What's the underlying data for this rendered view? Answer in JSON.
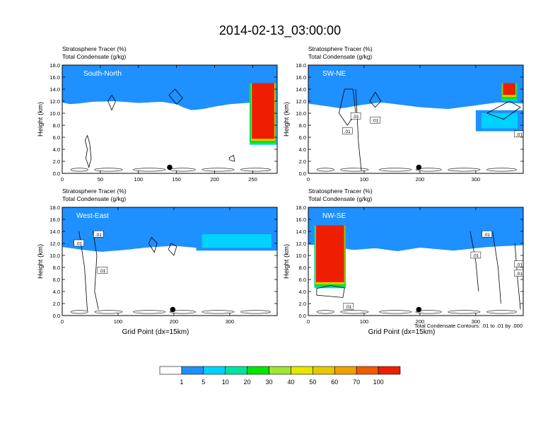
{
  "title": "2014-02-13_03:00:00",
  "colorbar": {
    "colors": [
      "#ffffff",
      "#1e90ff",
      "#00d2ff",
      "#00e3a0",
      "#00e600",
      "#a0e632",
      "#e6e600",
      "#e6c800",
      "#f0a000",
      "#f05a00",
      "#f01e00"
    ],
    "labels": [
      "1",
      "5",
      "10",
      "20",
      "30",
      "40",
      "50",
      "60",
      "70",
      "100"
    ]
  },
  "footnote": "Total Condensate Contours: .01 to .01 by .000",
  "chart_data": [
    {
      "type": "heatmap",
      "panel_label": "South-North",
      "title_lines": [
        "Stratosphere Tracer   (%)",
        "Total Condensate   (g/kg)"
      ],
      "ylabel": "Height (km)",
      "xlabel": "",
      "xlim": [
        0,
        282
      ],
      "ylim": [
        0,
        18
      ],
      "xticks": [
        0,
        50,
        100,
        150,
        200,
        250
      ],
      "yticks": [
        "0.0",
        "2.0",
        "4.0",
        "6.0",
        "8.0",
        "10.0",
        "12.0",
        "14.0",
        "16.0",
        "18.0"
      ],
      "marker": {
        "x": 141,
        "y": 1.0
      },
      "contour_labels": [],
      "profile": [
        [
          0,
          15.2
        ],
        [
          10,
          14.9
        ],
        [
          20,
          15.0
        ],
        [
          40,
          15.3
        ],
        [
          70,
          15.4
        ],
        [
          100,
          15.1
        ],
        [
          130,
          15.3
        ],
        [
          150,
          14.9
        ],
        [
          160,
          14.3
        ],
        [
          170,
          13.9
        ],
        [
          185,
          14.1
        ],
        [
          200,
          14.5
        ],
        [
          220,
          14.9
        ],
        [
          240,
          15.1
        ],
        [
          282,
          15.3
        ]
      ],
      "intrusions": [
        {
          "x0": 245,
          "x1": 282,
          "bottom": 4.5,
          "top": 15.0
        }
      ],
      "blue_patches": [],
      "contours": [
        [
          [
            30,
            5.5
          ],
          [
            33,
            4
          ],
          [
            31,
            2.5
          ],
          [
            35,
            1
          ],
          [
            38,
            2.5
          ],
          [
            36,
            5
          ],
          [
            33,
            6.3
          ],
          [
            30,
            5.5
          ]
        ],
        [
          [
            140,
            13
          ],
          [
            150,
            11.5
          ],
          [
            158,
            12.5
          ],
          [
            148,
            14
          ],
          [
            140,
            13
          ]
        ],
        [
          [
            60,
            12
          ],
          [
            65,
            10.5
          ],
          [
            70,
            12
          ],
          [
            65,
            13
          ],
          [
            60,
            12
          ]
        ],
        [
          [
            220,
            2.2
          ],
          [
            226,
            2.0
          ],
          [
            225,
            3.0
          ],
          [
            219,
            2.6
          ],
          [
            220,
            2.2
          ]
        ]
      ]
    },
    {
      "type": "heatmap",
      "panel_label": "SW-NE",
      "title_lines": [
        "Stratosphere Tracer   (%)",
        "Total Condensate   (g/kg)"
      ],
      "ylabel": "Height (km)",
      "xlabel": "",
      "xlim": [
        0,
        385
      ],
      "ylim": [
        0,
        18
      ],
      "xticks": [
        0,
        100,
        200,
        300
      ],
      "yticks": [
        "0.0",
        "2.0",
        "4.0",
        "6.0",
        "8.0",
        "10.0",
        "12.0",
        "14.0",
        "16.0",
        "18.0"
      ],
      "marker": {
        "x": 198,
        "y": 1.0
      },
      "contour_labels": [
        {
          "x": 85,
          "y": 9.5,
          "text": ".01"
        },
        {
          "x": 70,
          "y": 7.0,
          "text": ".01"
        },
        {
          "x": 120,
          "y": 8.8,
          "text": ".01"
        },
        {
          "x": 378,
          "y": 6.5,
          "text": ".01"
        }
      ],
      "profile": [
        [
          0,
          15.0
        ],
        [
          30,
          14.6
        ],
        [
          60,
          14.2
        ],
        [
          90,
          14.7
        ],
        [
          130,
          15.2
        ],
        [
          200,
          14.4
        ],
        [
          250,
          14.1
        ],
        [
          300,
          14.7
        ],
        [
          340,
          15.2
        ],
        [
          385,
          15.0
        ]
      ],
      "intrusions": [
        {
          "x0": 345,
          "x1": 375,
          "bottom": 11.8,
          "top": 15.0
        }
      ],
      "blue_patches": [
        {
          "x0": 300,
          "x1": 385,
          "bottom": 7,
          "top": 10.5
        }
      ],
      "contours": [
        [
          [
            55,
            10
          ],
          [
            70,
            8
          ],
          [
            85,
            10
          ],
          [
            80,
            14
          ],
          [
            65,
            14
          ],
          [
            55,
            10
          ]
        ],
        [
          [
            85,
            14
          ],
          [
            90,
            5
          ],
          [
            95,
            0.5
          ]
        ],
        [
          [
            110,
            12
          ],
          [
            120,
            11
          ],
          [
            130,
            12
          ],
          [
            120,
            13.5
          ],
          [
            110,
            12
          ]
        ],
        [
          [
            320,
            10
          ],
          [
            350,
            9
          ],
          [
            380,
            11
          ],
          [
            360,
            12
          ],
          [
            320,
            10
          ]
        ]
      ]
    },
    {
      "type": "heatmap",
      "panel_label": "West-East",
      "title_lines": [
        "Stratosphere Tracer   (%)",
        "Total Condensate   (g/kg)"
      ],
      "ylabel": "Height (km)",
      "xlabel": "Grid Point (dx=15km)",
      "xlim": [
        0,
        385
      ],
      "ylim": [
        0,
        18
      ],
      "xticks": [
        0,
        100,
        200,
        300
      ],
      "yticks": [
        "0.0",
        "2.0",
        "4.0",
        "6.0",
        "8.0",
        "10.0",
        "12.0",
        "14.0",
        "16.0",
        "18.0"
      ],
      "marker": {
        "x": 198,
        "y": 1.0
      },
      "contour_labels": [
        {
          "x": 30,
          "y": 12.0,
          "text": ".01"
        },
        {
          "x": 65,
          "y": 13.5,
          "text": ".01"
        },
        {
          "x": 72,
          "y": 7.5,
          "text": ".01"
        }
      ],
      "profile": [
        [
          0,
          14.8
        ],
        [
          40,
          14.3
        ],
        [
          70,
          14.0
        ],
        [
          110,
          14.3
        ],
        [
          150,
          14.7
        ],
        [
          200,
          15.0
        ],
        [
          250,
          14.6
        ],
        [
          300,
          14.9
        ],
        [
          385,
          15.0
        ]
      ],
      "intrusions": [],
      "blue_patches": [
        {
          "x0": 240,
          "x1": 385,
          "bottom": 10.8,
          "top": 14.0
        }
      ],
      "contours": [
        [
          [
            30,
            14
          ],
          [
            40,
            8
          ],
          [
            45,
            0.8
          ]
        ],
        [
          [
            55,
            14
          ],
          [
            62,
            10
          ],
          [
            58,
            4
          ],
          [
            65,
            1
          ]
        ],
        [
          [
            155,
            12
          ],
          [
            165,
            10.5
          ],
          [
            170,
            12
          ],
          [
            160,
            13
          ],
          [
            155,
            12
          ]
        ],
        [
          [
            190,
            11
          ],
          [
            200,
            10
          ],
          [
            205,
            11.5
          ],
          [
            195,
            12
          ],
          [
            190,
            11
          ]
        ]
      ]
    },
    {
      "type": "heatmap",
      "panel_label": "NW-SE",
      "title_lines": [
        "Stratosphere Tracer   (%)",
        "Total Condensate   (g/kg)"
      ],
      "ylabel": "Height (km)",
      "xlabel": "Grid Point (dx=15km)",
      "xlim": [
        0,
        385
      ],
      "ylim": [
        0,
        18
      ],
      "xticks": [
        0,
        100,
        200,
        300
      ],
      "yticks": [
        "0.0",
        "2.0",
        "4.0",
        "6.0",
        "8.0",
        "10.0",
        "12.0",
        "14.0",
        "16.0",
        "18.0"
      ],
      "marker": {
        "x": 198,
        "y": 1.0
      },
      "contour_labels": [
        {
          "x": 320,
          "y": 13.5,
          "text": ".01"
        },
        {
          "x": 300,
          "y": 10.0,
          "text": ".01"
        },
        {
          "x": 378,
          "y": 8.5,
          "text": ".01"
        },
        {
          "x": 378,
          "y": 7.0,
          "text": ".01"
        },
        {
          "x": 72,
          "y": 1.5,
          "text": ".01"
        }
      ],
      "profile": [
        [
          0,
          15.2
        ],
        [
          40,
          15.0
        ],
        [
          80,
          14.3
        ],
        [
          120,
          14.6
        ],
        [
          160,
          14.1
        ],
        [
          200,
          14.7
        ],
        [
          260,
          14.2
        ],
        [
          320,
          14.8
        ],
        [
          385,
          15.1
        ]
      ],
      "intrusions": [
        {
          "x0": 10,
          "x1": 68,
          "bottom": 4.3,
          "top": 15.0
        }
      ],
      "blue_patches": [],
      "contours": [
        [
          [
            15,
            4.5
          ],
          [
            40,
            5.0
          ],
          [
            65,
            4.6
          ],
          [
            62,
            3.0
          ],
          [
            15,
            3.4
          ],
          [
            15,
            4.5
          ]
        ],
        [
          [
            290,
            14
          ],
          [
            300,
            9
          ],
          [
            305,
            4
          ]
        ],
        [
          [
            330,
            14
          ],
          [
            340,
            8
          ],
          [
            345,
            2
          ]
        ],
        [
          [
            370,
            12
          ],
          [
            375,
            6
          ],
          [
            380,
            1
          ]
        ]
      ]
    }
  ]
}
